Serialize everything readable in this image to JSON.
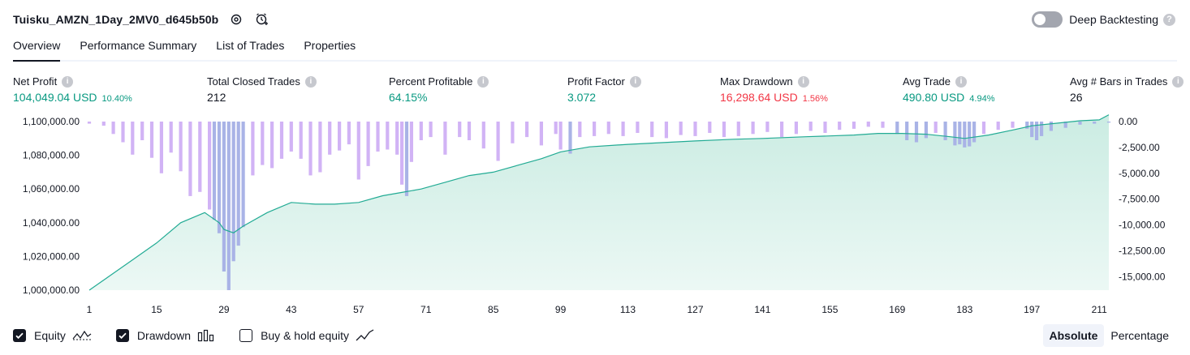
{
  "header": {
    "title": "Tuisku_AMZN_1Day_2MV0_d645b50b",
    "icons": [
      "settings-icon",
      "add-alert-icon"
    ],
    "deep_backtesting_label": "Deep Backtesting",
    "deep_backtesting_on": false
  },
  "tabs": [
    {
      "label": "Overview",
      "active": true
    },
    {
      "label": "Performance Summary",
      "active": false
    },
    {
      "label": "List of Trades",
      "active": false
    },
    {
      "label": "Properties",
      "active": false
    }
  ],
  "stats": [
    {
      "label": "Net Profit",
      "value": "104,049.04 USD",
      "pct": "10.40%",
      "color": "green"
    },
    {
      "label": "Total Closed Trades",
      "value": "212",
      "pct": "",
      "color": "dark"
    },
    {
      "label": "Percent Profitable",
      "value": "64.15%",
      "pct": "",
      "color": "green"
    },
    {
      "label": "Profit Factor",
      "value": "3.072",
      "pct": "",
      "color": "green"
    },
    {
      "label": "Max Drawdown",
      "value": "16,298.64 USD",
      "pct": "1.56%",
      "color": "red"
    },
    {
      "label": "Avg Trade",
      "value": "490.80 USD",
      "pct": "4.94%",
      "color": "green"
    },
    {
      "label": "Avg # Bars in Trades",
      "value": "26",
      "pct": "",
      "color": "dark"
    }
  ],
  "legend": {
    "equity_label": "Equity",
    "equity_checked": true,
    "drawdown_label": "Drawdown",
    "drawdown_checked": true,
    "buyhold_label": "Buy & hold equity",
    "buyhold_checked": false
  },
  "modes": {
    "absolute": "Absolute",
    "percentage": "Percentage",
    "active": "absolute"
  },
  "colors": {
    "equity_line": "#22ab94",
    "equity_fill": "#c8ebe1",
    "drawdown_bar": "#d1b3f5",
    "drawdown_bar_overlap": "#a9b3e6",
    "green": "#089981",
    "red": "#f23645"
  },
  "chart_data": {
    "type": "line",
    "x_ticks": [
      "1",
      "15",
      "29",
      "43",
      "57",
      "71",
      "85",
      "99",
      "113",
      "127",
      "141",
      "155",
      "169",
      "183",
      "197",
      "211"
    ],
    "left_axis_ticks": [
      "1,100,000.00",
      "1,080,000.00",
      "1,060,000.00",
      "1,040,000.00",
      "1,020,000.00",
      "1,000,000.00"
    ],
    "right_axis_ticks": [
      "0.00",
      "-2,500.00",
      "-5,000.00",
      "-7,500.00",
      "-10,000.00",
      "-12,500.00",
      "-15,000.00"
    ],
    "ylim_left": [
      1000000,
      1100000
    ],
    "ylim_right": [
      -16298.64,
      0
    ],
    "series": [
      {
        "name": "Equity",
        "x": [
          1,
          5,
          10,
          15,
          20,
          25,
          28,
          29,
          31,
          33,
          38,
          43,
          48,
          52,
          57,
          62,
          66,
          70,
          75,
          80,
          85,
          90,
          95,
          99,
          105,
          113,
          120,
          127,
          135,
          141,
          150,
          155,
          160,
          165,
          170,
          175,
          180,
          183,
          188,
          193,
          197,
          202,
          207,
          211,
          213
        ],
        "values": [
          1000000,
          1008000,
          1018000,
          1028000,
          1040000,
          1046000,
          1040000,
          1036000,
          1034000,
          1038000,
          1046000,
          1052000,
          1051000,
          1051000,
          1052000,
          1056000,
          1058000,
          1060000,
          1064000,
          1068000,
          1070000,
          1074000,
          1078000,
          1082000,
          1085000,
          1086500,
          1087500,
          1088500,
          1089500,
          1090000,
          1091000,
          1091500,
          1092000,
          1093000,
          1093000,
          1092500,
          1091000,
          1090000,
          1092000,
          1095000,
          1097500,
          1099000,
          1100500,
          1101000,
          1104049
        ]
      },
      {
        "name": "Drawdown",
        "x": [
          1,
          4,
          6,
          8,
          10,
          12,
          14,
          16,
          18,
          20,
          22,
          24,
          26,
          27,
          28,
          29,
          30,
          31,
          32,
          33,
          35,
          37,
          39,
          41,
          43,
          45,
          47,
          49,
          51,
          53,
          55,
          57,
          59,
          61,
          63,
          65,
          66,
          67,
          68,
          70,
          72,
          75,
          78,
          80,
          83,
          86,
          89,
          92,
          95,
          98,
          99,
          101,
          103,
          106,
          109,
          112,
          115,
          118,
          121,
          124,
          127,
          130,
          133,
          136,
          139,
          142,
          145,
          148,
          151,
          154,
          157,
          160,
          163,
          166,
          169,
          171,
          173,
          175,
          177,
          179,
          181,
          182,
          183,
          184,
          185,
          187,
          190,
          193,
          196,
          197,
          198,
          199,
          201,
          204,
          207,
          210,
          213
        ],
        "values": [
          -200,
          -400,
          -1200,
          -2000,
          -3200,
          -1800,
          -3500,
          -5000,
          -3000,
          -4800,
          -7200,
          -6800,
          -8500,
          -9500,
          -10800,
          -14500,
          -16298.64,
          -13500,
          -12000,
          -10200,
          -5200,
          -4200,
          -4500,
          -3600,
          -2900,
          -3600,
          -5200,
          -4900,
          -3200,
          -2800,
          -2200,
          -5600,
          -4300,
          -2900,
          -2700,
          -3200,
          -6100,
          -7200,
          -3900,
          -1800,
          -1500,
          -3200,
          -1500,
          -1800,
          -2600,
          -3800,
          -2100,
          -1500,
          -2300,
          -1200,
          -2700,
          -3100,
          -1500,
          -1400,
          -1200,
          -1400,
          -1100,
          -1500,
          -1600,
          -1300,
          -1400,
          -1100,
          -1500,
          -1400,
          -1200,
          -1000,
          -1500,
          -1200,
          -900,
          -1100,
          -800,
          -700,
          -500,
          -600,
          -1200,
          -1800,
          -2000,
          -1600,
          -1100,
          -1800,
          -2300,
          -2200,
          -2500,
          -2400,
          -2000,
          -1200,
          -800,
          -600,
          -700,
          -1500,
          -1800,
          -1400,
          -900,
          -600,
          -300,
          -200,
          -100
        ]
      }
    ],
    "grid": false,
    "legend_position": "bottom-left"
  }
}
